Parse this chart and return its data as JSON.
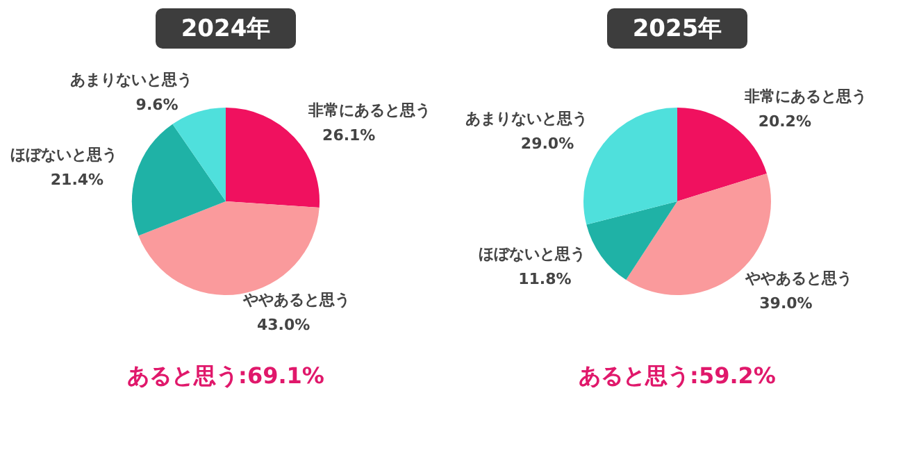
{
  "chart_data": [
    {
      "type": "pie",
      "title": "2024年",
      "categories": [
        "非常にあると思う",
        "ややあると思う",
        "ほぼないと思う",
        "あまりないと思う"
      ],
      "values": [
        26.1,
        43.0,
        21.4,
        9.6
      ],
      "value_labels": [
        "26.1%",
        "43.0%",
        "21.4%",
        "9.6%"
      ],
      "colors": [
        "#f0115f",
        "#fa9a9c",
        "#1fb2a6",
        "#4fe0dc"
      ],
      "legend": false,
      "annotations": [
        "あると思う:69.1%"
      ]
    },
    {
      "type": "pie",
      "title": "2025年",
      "categories": [
        "非常にあると思う",
        "ややあると思う",
        "ほぼないと思う",
        "あまりないと思う"
      ],
      "values": [
        20.2,
        39.0,
        11.8,
        29.0
      ],
      "value_labels": [
        "20.2%",
        "39.0%",
        "11.8%",
        "29.0%"
      ],
      "colors": [
        "#f0115f",
        "#fa9a9c",
        "#1fb2a6",
        "#4fe0dc"
      ],
      "legend": false,
      "annotations": [
        "あると思う:59.2%"
      ]
    }
  ]
}
